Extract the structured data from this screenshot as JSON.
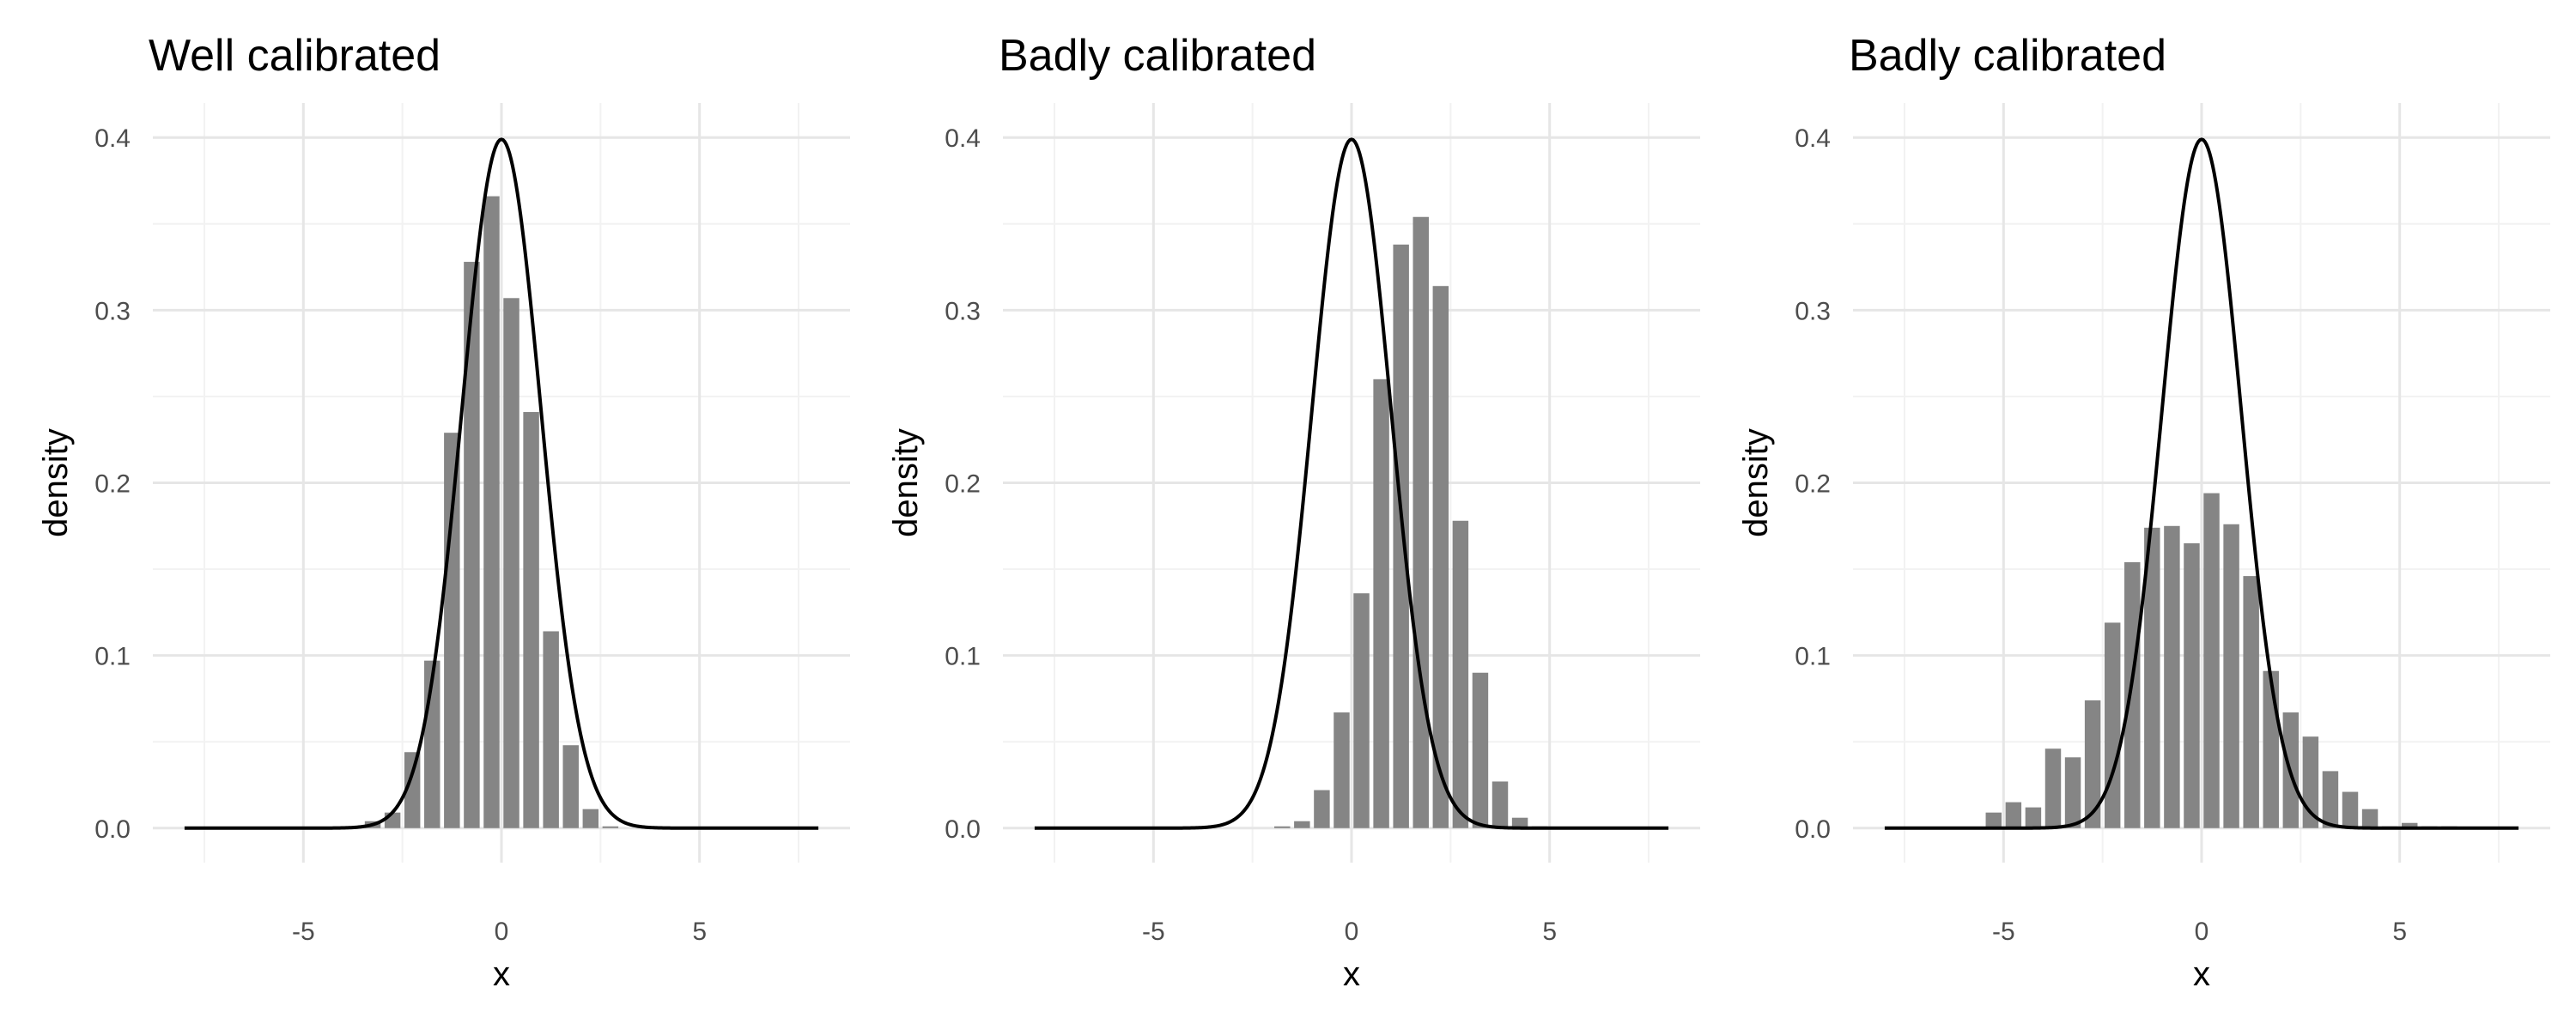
{
  "chart_data": [
    {
      "type": "bar",
      "title": "Well calibrated",
      "xlabel": "x",
      "ylabel": "density",
      "xlim": [
        -8,
        8
      ],
      "ylim": [
        0,
        0.4
      ],
      "xticks": [
        -5,
        0,
        5
      ],
      "yticks": [
        0.0,
        0.1,
        0.2,
        0.3,
        0.4
      ],
      "grid": true,
      "bar_width": 0.5,
      "bar_color": "#858585",
      "curve": {
        "name": "",
        "distribution": "normal",
        "mean": 0,
        "sd": 1,
        "color": "#000000"
      },
      "series": [
        {
          "name": "",
          "x": [
            -3.25,
            -2.75,
            -2.25,
            -1.75,
            -1.25,
            -0.75,
            -0.25,
            0.25,
            0.75,
            1.25,
            1.75,
            2.25,
            2.75
          ],
          "values": [
            0.004,
            0.009,
            0.044,
            0.097,
            0.229,
            0.328,
            0.366,
            0.307,
            0.241,
            0.114,
            0.048,
            0.011,
            0.001
          ]
        }
      ]
    },
    {
      "type": "bar",
      "title": "Badly calibrated",
      "xlabel": "x",
      "ylabel": "density",
      "xlim": [
        -8,
        8
      ],
      "ylim": [
        0,
        0.4
      ],
      "xticks": [
        -5,
        0,
        5
      ],
      "yticks": [
        0.0,
        0.1,
        0.2,
        0.3,
        0.4
      ],
      "grid": true,
      "bar_width": 0.5,
      "bar_color": "#858585",
      "curve": {
        "name": "",
        "distribution": "normal",
        "mean": 0,
        "sd": 1,
        "color": "#000000"
      },
      "series": [
        {
          "name": "",
          "x": [
            -1.75,
            -1.25,
            -0.75,
            -0.25,
            0.25,
            0.75,
            1.25,
            1.75,
            2.25,
            2.75,
            3.25,
            3.75,
            4.25,
            4.75,
            5.25
          ],
          "values": [
            0.001,
            0.004,
            0.022,
            0.067,
            0.136,
            0.26,
            0.338,
            0.354,
            0.314,
            0.178,
            0.09,
            0.027,
            0.006,
            0.001,
            0.0005
          ]
        }
      ]
    },
    {
      "type": "bar",
      "title": "Badly calibrated",
      "xlabel": "x",
      "ylabel": "density",
      "xlim": [
        -8,
        8
      ],
      "ylim": [
        0,
        0.4
      ],
      "xticks": [
        -5,
        0,
        5
      ],
      "yticks": [
        0.0,
        0.1,
        0.2,
        0.3,
        0.4
      ],
      "grid": true,
      "bar_width": 0.5,
      "bar_color": "#858585",
      "curve": {
        "name": "",
        "distribution": "normal",
        "mean": 0,
        "sd": 1,
        "color": "#000000"
      },
      "series": [
        {
          "name": "",
          "x": [
            -5.25,
            -4.75,
            -4.25,
            -3.75,
            -3.25,
            -2.75,
            -2.25,
            -1.75,
            -1.25,
            -0.75,
            -0.25,
            0.25,
            0.75,
            1.25,
            1.75,
            2.25,
            2.75,
            3.25,
            3.75,
            4.25,
            4.75,
            5.25,
            5.75,
            6.25
          ],
          "values": [
            0.009,
            0.015,
            0.012,
            0.046,
            0.041,
            0.074,
            0.119,
            0.154,
            0.174,
            0.175,
            0.165,
            0.194,
            0.176,
            0.146,
            0.091,
            0.067,
            0.053,
            0.033,
            0.021,
            0.011,
            0.001,
            0.003,
            0.001,
            0.001
          ]
        }
      ]
    }
  ]
}
